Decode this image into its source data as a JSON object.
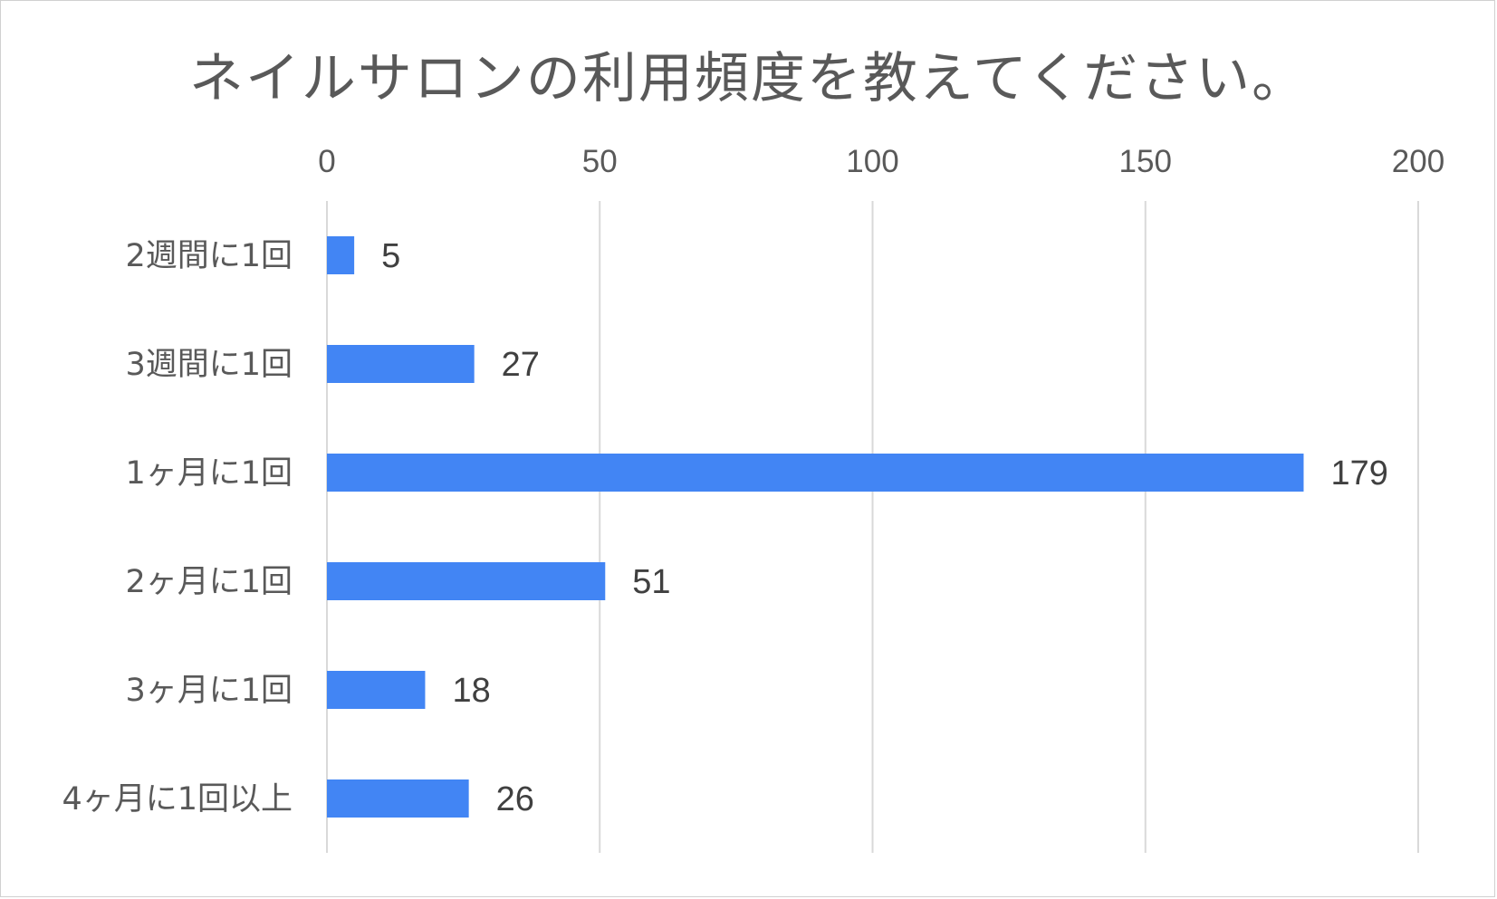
{
  "chart_data": {
    "type": "bar",
    "orientation": "horizontal",
    "title": "ネイルサロンの利用頻度を教えてください。",
    "categories": [
      "2週間に1回",
      "3週間に1回",
      "1ヶ月に1回",
      "2ヶ月に1回",
      "3ヶ月に1回",
      "4ヶ月に1回以上"
    ],
    "values": [
      5,
      27,
      179,
      51,
      18,
      26
    ],
    "xlim": [
      0,
      200
    ],
    "ticks": [
      0,
      50,
      100,
      150,
      200
    ],
    "tick_labels": [
      "0",
      "50",
      "100",
      "150",
      "200"
    ],
    "axis_position": "top",
    "grid": true,
    "legend": "none",
    "bar_color": "#4285f4",
    "data_labels": true
  }
}
